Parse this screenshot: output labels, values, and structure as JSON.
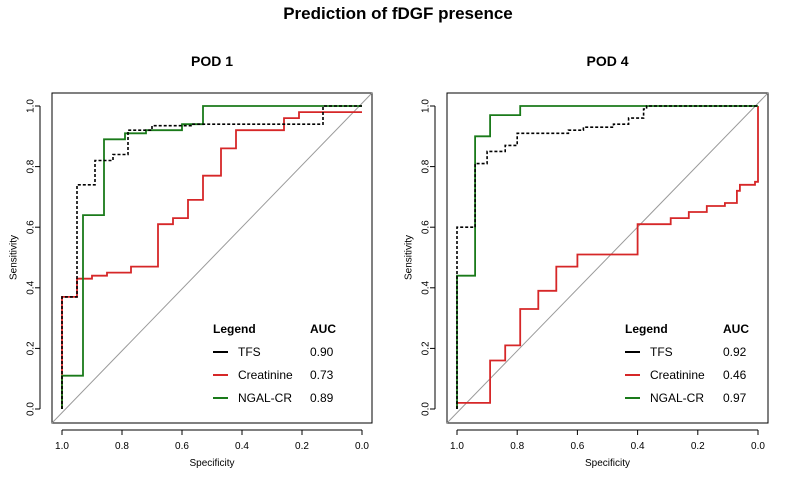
{
  "title": "Prediction of fDGF presence",
  "legend_header": "Legend",
  "auc_header": "AUC",
  "chart_data": [
    {
      "type": "line",
      "title": "POD 1",
      "xlabel": "Specificity",
      "ylabel": "Sensitivity",
      "xlim": [
        1.0,
        0.0
      ],
      "ylim": [
        0.0,
        1.0
      ],
      "xticks": [
        "1.0",
        "0.8",
        "0.6",
        "0.4",
        "0.2",
        "0.0"
      ],
      "yticks": [
        "0.0",
        "0.2",
        "0.4",
        "0.6",
        "0.8",
        "1.0"
      ],
      "series": [
        {
          "name": "TFS",
          "auc": "0.90",
          "color": "#000000",
          "dash": "dotted",
          "points": [
            [
              1,
              0
            ],
            [
              1,
              0.37
            ],
            [
              0.95,
              0.37
            ],
            [
              0.95,
              0.74
            ],
            [
              0.89,
              0.74
            ],
            [
              0.89,
              0.82
            ],
            [
              0.83,
              0.82
            ],
            [
              0.83,
              0.84
            ],
            [
              0.78,
              0.84
            ],
            [
              0.78,
              0.92
            ],
            [
              0.7,
              0.92
            ],
            [
              0.7,
              0.935
            ],
            [
              0.57,
              0.935
            ],
            [
              0.57,
              0.94
            ],
            [
              0.13,
              0.94
            ],
            [
              0.13,
              1
            ],
            [
              0,
              1
            ]
          ]
        },
        {
          "name": "Creatinine",
          "auc": "0.73",
          "color": "#d62728",
          "dash": "solid",
          "points": [
            [
              1,
              0
            ],
            [
              1,
              0.37
            ],
            [
              0.95,
              0.37
            ],
            [
              0.95,
              0.43
            ],
            [
              0.9,
              0.43
            ],
            [
              0.9,
              0.44
            ],
            [
              0.85,
              0.44
            ],
            [
              0.85,
              0.45
            ],
            [
              0.77,
              0.45
            ],
            [
              0.77,
              0.47
            ],
            [
              0.68,
              0.47
            ],
            [
              0.68,
              0.61
            ],
            [
              0.63,
              0.61
            ],
            [
              0.63,
              0.63
            ],
            [
              0.58,
              0.63
            ],
            [
              0.58,
              0.69
            ],
            [
              0.53,
              0.69
            ],
            [
              0.53,
              0.77
            ],
            [
              0.47,
              0.77
            ],
            [
              0.47,
              0.86
            ],
            [
              0.42,
              0.86
            ],
            [
              0.42,
              0.92
            ],
            [
              0.26,
              0.92
            ],
            [
              0.26,
              0.96
            ],
            [
              0.21,
              0.96
            ],
            [
              0.21,
              0.98
            ],
            [
              0,
              0.98
            ]
          ]
        },
        {
          "name": "NGAL-CR",
          "auc": "0.89",
          "color": "#1a7a1a",
          "dash": "solid",
          "points": [
            [
              1,
              0
            ],
            [
              1,
              0.11
            ],
            [
              0.93,
              0.11
            ],
            [
              0.93,
              0.64
            ],
            [
              0.86,
              0.64
            ],
            [
              0.86,
              0.89
            ],
            [
              0.79,
              0.89
            ],
            [
              0.79,
              0.91
            ],
            [
              0.72,
              0.91
            ],
            [
              0.72,
              0.92
            ],
            [
              0.6,
              0.92
            ],
            [
              0.6,
              0.94
            ],
            [
              0.53,
              0.94
            ],
            [
              0.53,
              1
            ],
            [
              0,
              1
            ]
          ]
        }
      ]
    },
    {
      "type": "line",
      "title": "POD 4",
      "xlabel": "Specificity",
      "ylabel": "Sensitivity",
      "xlim": [
        1.0,
        0.0
      ],
      "ylim": [
        0.0,
        1.0
      ],
      "xticks": [
        "1.0",
        "0.8",
        "0.6",
        "0.4",
        "0.2",
        "0.0"
      ],
      "yticks": [
        "0.0",
        "0.2",
        "0.4",
        "0.6",
        "0.8",
        "1.0"
      ],
      "series": [
        {
          "name": "TFS",
          "auc": "0.92",
          "color": "#000000",
          "dash": "dotted",
          "points": [
            [
              1,
              0
            ],
            [
              1,
              0.6
            ],
            [
              0.94,
              0.6
            ],
            [
              0.94,
              0.81
            ],
            [
              0.9,
              0.81
            ],
            [
              0.9,
              0.85
            ],
            [
              0.84,
              0.85
            ],
            [
              0.84,
              0.87
            ],
            [
              0.8,
              0.87
            ],
            [
              0.8,
              0.91
            ],
            [
              0.63,
              0.91
            ],
            [
              0.63,
              0.92
            ],
            [
              0.58,
              0.92
            ],
            [
              0.58,
              0.93
            ],
            [
              0.48,
              0.93
            ],
            [
              0.48,
              0.94
            ],
            [
              0.43,
              0.94
            ],
            [
              0.43,
              0.96
            ],
            [
              0.38,
              0.96
            ],
            [
              0.38,
              0.99
            ],
            [
              0.37,
              0.99
            ],
            [
              0.37,
              1
            ],
            [
              0,
              1
            ]
          ]
        },
        {
          "name": "Creatinine",
          "auc": "0.46",
          "color": "#d62728",
          "dash": "solid",
          "points": [
            [
              1,
              0
            ],
            [
              1,
              0.02
            ],
            [
              0.89,
              0.02
            ],
            [
              0.89,
              0.16
            ],
            [
              0.84,
              0.16
            ],
            [
              0.84,
              0.21
            ],
            [
              0.79,
              0.21
            ],
            [
              0.79,
              0.33
            ],
            [
              0.73,
              0.33
            ],
            [
              0.73,
              0.39
            ],
            [
              0.67,
              0.39
            ],
            [
              0.67,
              0.47
            ],
            [
              0.6,
              0.47
            ],
            [
              0.6,
              0.51
            ],
            [
              0.4,
              0.51
            ],
            [
              0.4,
              0.61
            ],
            [
              0.29,
              0.61
            ],
            [
              0.29,
              0.63
            ],
            [
              0.23,
              0.63
            ],
            [
              0.23,
              0.65
            ],
            [
              0.17,
              0.65
            ],
            [
              0.17,
              0.67
            ],
            [
              0.11,
              0.67
            ],
            [
              0.11,
              0.68
            ],
            [
              0.07,
              0.68
            ],
            [
              0.07,
              0.72
            ],
            [
              0.06,
              0.72
            ],
            [
              0.06,
              0.74
            ],
            [
              0.01,
              0.74
            ],
            [
              0.01,
              0.75
            ],
            [
              0,
              0.75
            ],
            [
              0,
              1
            ]
          ]
        },
        {
          "name": "NGAL-CR",
          "auc": "0.97",
          "color": "#1a7a1a",
          "dash": "solid",
          "points": [
            [
              1,
              0
            ],
            [
              1,
              0.44
            ],
            [
              0.94,
              0.44
            ],
            [
              0.94,
              0.9
            ],
            [
              0.89,
              0.9
            ],
            [
              0.89,
              0.97
            ],
            [
              0.79,
              0.97
            ],
            [
              0.79,
              1
            ],
            [
              0,
              1
            ]
          ]
        }
      ]
    }
  ]
}
